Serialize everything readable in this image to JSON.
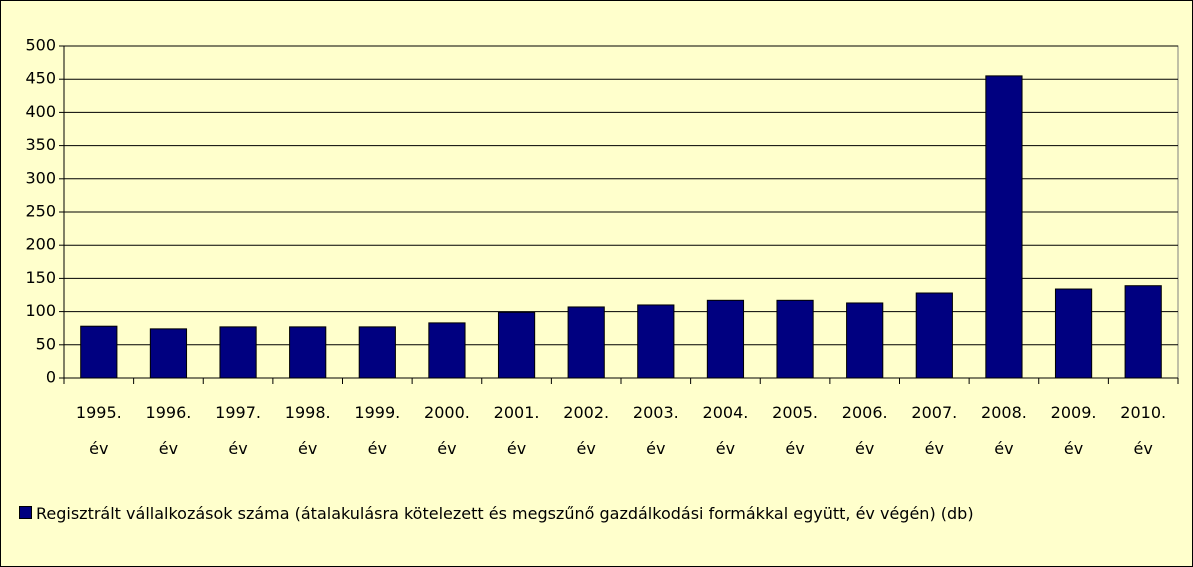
{
  "chart_data": {
    "type": "bar",
    "categories": [
      "1995. év",
      "1996. év",
      "1997. év",
      "1998. év",
      "1999. év",
      "2000. év",
      "2001. év",
      "2002. év",
      "2003. év",
      "2004. év",
      "2005. év",
      "2006. év",
      "2007. év",
      "2008. év",
      "2009. év",
      "2010. év"
    ],
    "series": [
      {
        "name": "Regisztrált vállalkozások száma (átalakulásra kötelezett és megszűnő gazdálkodási formákkal együtt, év végén) (db)",
        "color": "#000080",
        "values": [
          78,
          74,
          77,
          77,
          77,
          83,
          99,
          107,
          110,
          117,
          117,
          113,
          128,
          455,
          134,
          139
        ]
      }
    ],
    "ylim": [
      0,
      500
    ],
    "yticks": [
      0,
      50,
      100,
      150,
      200,
      250,
      300,
      350,
      400,
      450,
      500
    ],
    "grid": true
  }
}
